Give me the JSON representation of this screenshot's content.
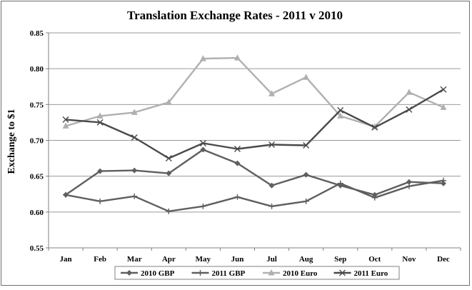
{
  "chart_data": {
    "type": "line",
    "title": "Translation Exchange Rates - 2011 v 2010",
    "xlabel": "",
    "ylabel": "Exchange to $1",
    "ylim": [
      0.55,
      0.85
    ],
    "yticks": [
      "0.55",
      "0.60",
      "0.65",
      "0.70",
      "0.75",
      "0.80",
      "0.85"
    ],
    "grid": true,
    "legend_position": "bottom",
    "categories": [
      "Jan",
      "Feb",
      "Mar",
      "Apr",
      "May",
      "Jun",
      "Jul",
      "Aug",
      "Sep",
      "Oct",
      "Nov",
      "Dec"
    ],
    "series": [
      {
        "name": "2010 GBP",
        "color": "#5f5f5f",
        "marker": "diamond",
        "values": [
          0.624,
          0.657,
          0.658,
          0.654,
          0.687,
          0.668,
          0.637,
          0.652,
          0.637,
          0.624,
          0.642,
          0.64
        ]
      },
      {
        "name": "2011 GBP",
        "color": "#5f5f5f",
        "marker": "plus",
        "values": [
          0.624,
          0.615,
          0.622,
          0.601,
          0.608,
          0.621,
          0.608,
          0.615,
          0.64,
          0.62,
          0.636,
          0.644
        ]
      },
      {
        "name": "2010 Euro",
        "color": "#b0b0b0",
        "marker": "triangle",
        "values": [
          0.72,
          0.734,
          0.739,
          0.753,
          0.814,
          0.815,
          0.765,
          0.788,
          0.734,
          0.719,
          0.767,
          0.746
        ]
      },
      {
        "name": "2011 Euro",
        "color": "#4a4a4a",
        "marker": "x",
        "values": [
          0.729,
          0.725,
          0.704,
          0.675,
          0.696,
          0.688,
          0.694,
          0.693,
          0.742,
          0.718,
          0.743,
          0.771
        ]
      }
    ]
  }
}
